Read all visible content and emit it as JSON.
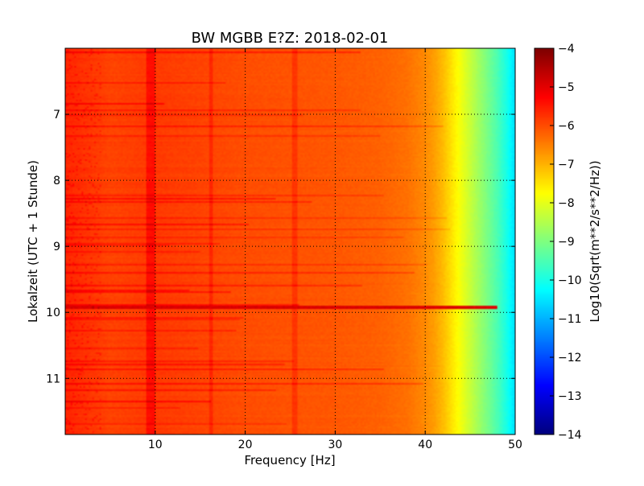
{
  "chart_data": {
    "type": "heatmap",
    "title": "BW MGBB E?Z: 2018-02-01",
    "xlabel": "Frequency [Hz]",
    "ylabel": "Lokalzeit (UTC + 1 Stunde)",
    "xlim": [
      0,
      50
    ],
    "ylim": [
      6.0,
      11.85
    ],
    "y_inverted": true,
    "x_ticks": [
      10,
      20,
      30,
      40,
      50
    ],
    "y_ticks": [
      7,
      8,
      9,
      10,
      11
    ],
    "grid": true,
    "colormap": "jet",
    "colorbar": {
      "label": "Log10(Sqrt(m**2/s**2/Hz))",
      "min": -14,
      "max": -4,
      "ticks": [
        -4,
        -5,
        -6,
        -7,
        -8,
        -9,
        -10,
        -11,
        -12,
        -13,
        -14
      ]
    },
    "spectrum_profile": {
      "frequency_hz": [
        0,
        5,
        10,
        20,
        30,
        35,
        38,
        40,
        41,
        42,
        43,
        44,
        45,
        46,
        47,
        48,
        49,
        50
      ],
      "log10_value": [
        -5.6,
        -5.9,
        -5.8,
        -6.0,
        -6.1,
        -6.2,
        -6.35,
        -6.6,
        -6.8,
        -7.1,
        -7.5,
        -7.9,
        -8.3,
        -8.7,
        -9.1,
        -9.5,
        -10.0,
        -10.6
      ]
    },
    "persistent_lines_hz": [
      9.5,
      16.2,
      25.5
    ],
    "event": {
      "time": 9.93,
      "log10_value": -4.9
    }
  }
}
